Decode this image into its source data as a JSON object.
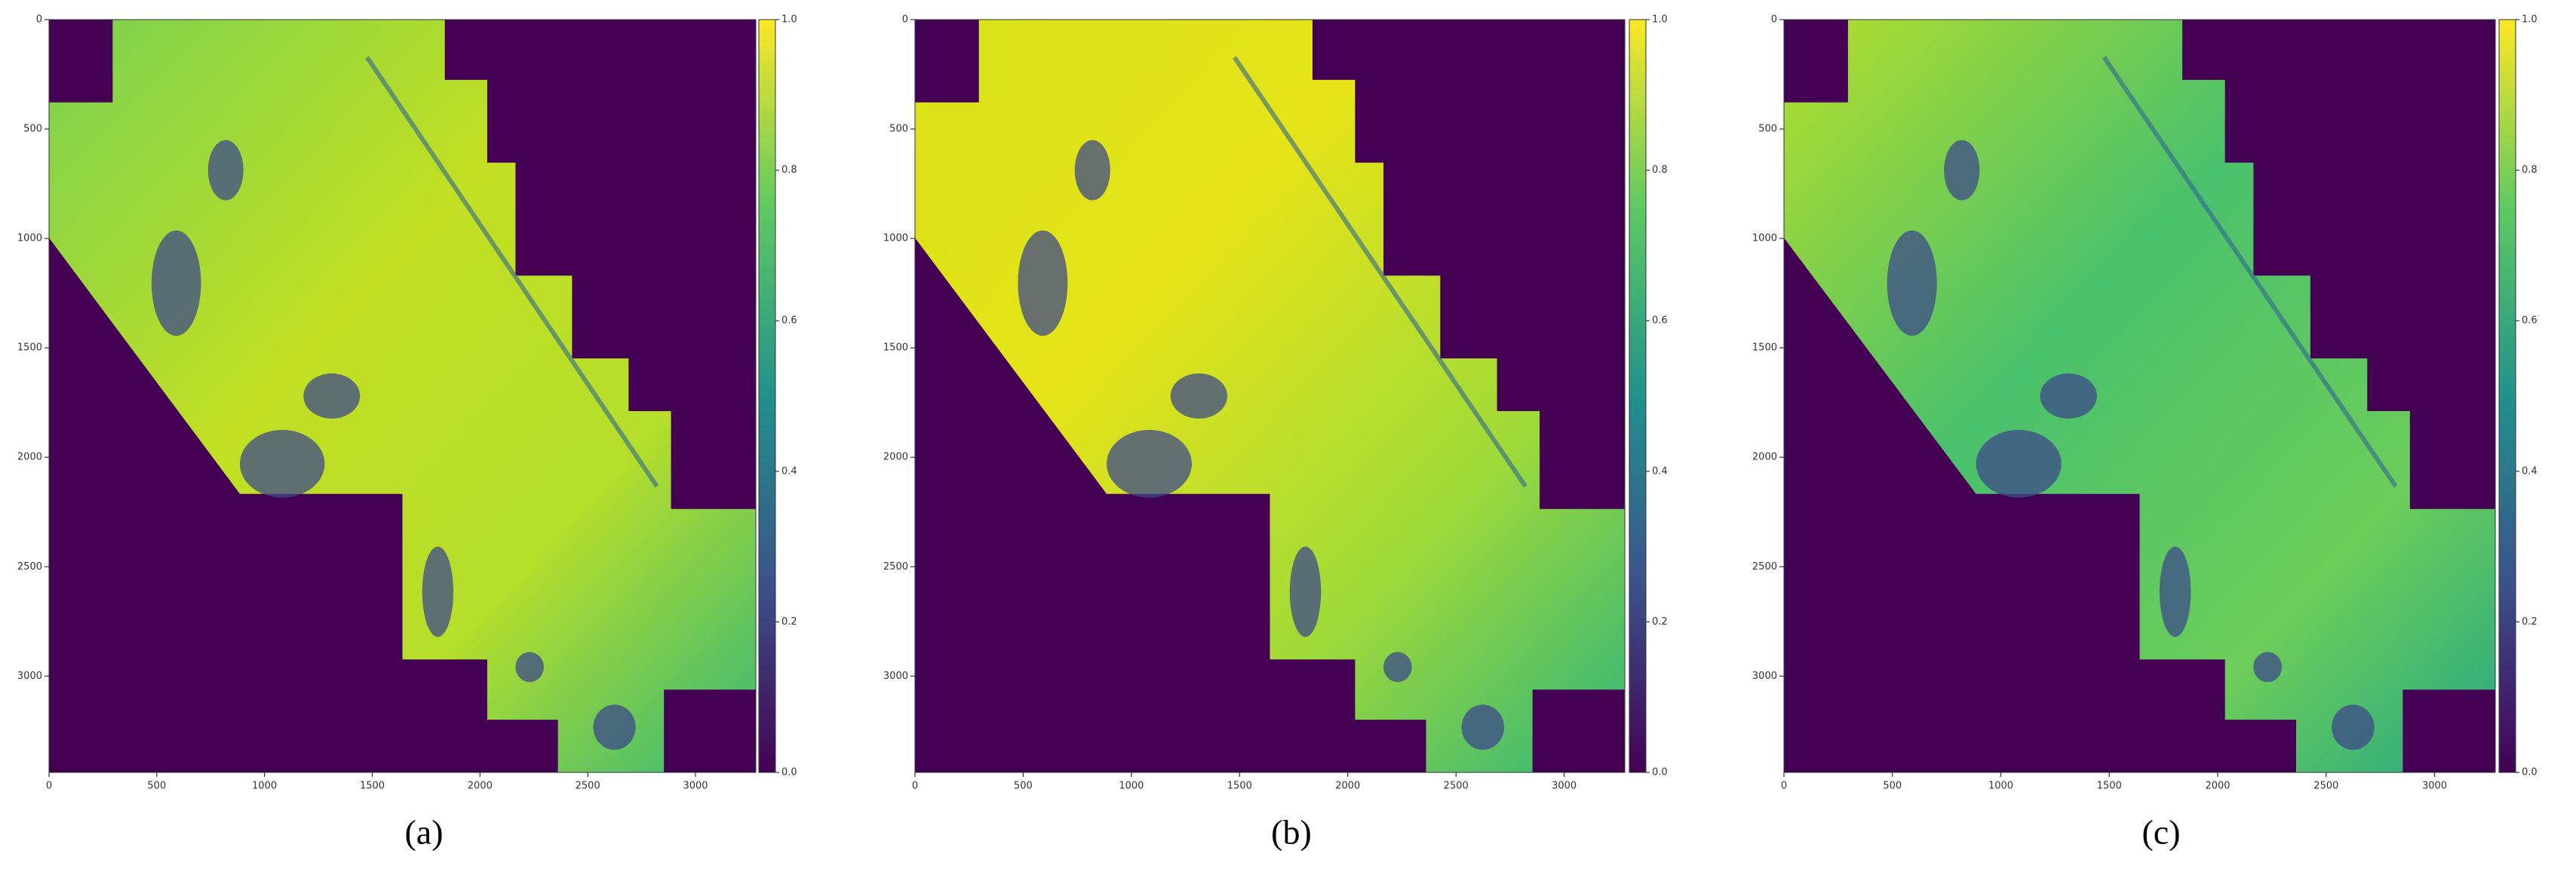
{
  "chart_data": [
    {
      "type": "heatmap",
      "label": "(a)",
      "xlim": [
        0,
        3280
      ],
      "ylim": [
        3440,
        0
      ],
      "xticks": [
        0,
        500,
        1000,
        1500,
        2000,
        2500,
        3000
      ],
      "yticks": [
        0,
        500,
        1000,
        1500,
        2000,
        2500,
        3000
      ],
      "clim": [
        0,
        1
      ],
      "cticks": [
        {
          "value": 0,
          "label": "0.0"
        },
        0.2,
        0.4,
        0.6,
        0.8,
        {
          "value": 1,
          "label": "1.0"
        }
      ]
    },
    {
      "type": "heatmap",
      "label": "(b)",
      "xlim": [
        0,
        3280
      ],
      "ylim": [
        3440,
        0
      ],
      "xticks": [
        0,
        500,
        1000,
        1500,
        2000,
        2500,
        3000
      ],
      "yticks": [
        0,
        500,
        1000,
        1500,
        2000,
        2500,
        3000
      ],
      "clim": [
        0,
        1
      ],
      "cticks": [
        {
          "value": 0,
          "label": "0.0"
        },
        0.2,
        0.4,
        0.6,
        0.8,
        {
          "value": 1,
          "label": "1.0"
        }
      ]
    },
    {
      "type": "heatmap",
      "label": "(c)",
      "xlim": [
        0,
        3280
      ],
      "ylim": [
        3440,
        0
      ],
      "xticks": [
        0,
        500,
        1000,
        1500,
        2000,
        2500,
        3000
      ],
      "yticks": [
        0,
        500,
        1000,
        1500,
        2000,
        2500,
        3000
      ],
      "clim": [
        0,
        1
      ],
      "cticks": [
        {
          "value": 0,
          "label": "0.0"
        },
        0.2,
        0.4,
        0.6,
        0.8,
        {
          "value": 1,
          "label": "1.0"
        }
      ]
    }
  ]
}
